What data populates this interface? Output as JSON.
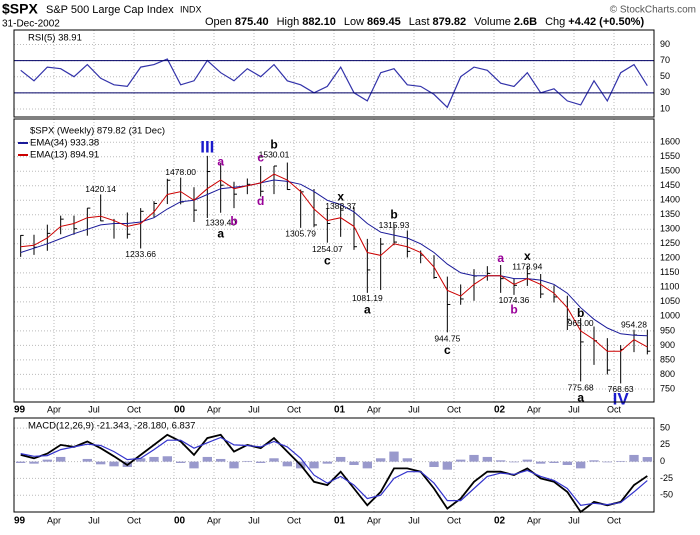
{
  "header": {
    "symbol": "$SPX",
    "name": "S&P 500 Large Cap Index",
    "exchange": "INDX",
    "date": "31-Dec-2002",
    "copyright": "© StockCharts.com",
    "quote": [
      {
        "label": "Open",
        "value": "875.40"
      },
      {
        "label": "High",
        "value": "882.10"
      },
      {
        "label": "Low",
        "value": "869.45"
      },
      {
        "label": "Last",
        "value": "879.82"
      },
      {
        "label": "Volume",
        "value": "2.6B"
      },
      {
        "label": "Chg",
        "value": "+4.42 (+0.50%)"
      }
    ]
  },
  "chart_data": [
    {
      "type": "line",
      "title": "RSI(5) 38.91",
      "ylim": [
        0,
        108
      ],
      "yticks": [
        90,
        70,
        50,
        30,
        10
      ],
      "color": "#3333aa",
      "values": [
        58,
        45,
        62,
        60,
        50,
        65,
        48,
        40,
        38,
        62,
        65,
        72,
        40,
        45,
        70,
        55,
        45,
        60,
        50,
        65,
        45,
        40,
        30,
        38,
        62,
        30,
        20,
        55,
        60,
        40,
        38,
        28,
        12,
        50,
        62,
        58,
        42,
        38,
        55,
        30,
        35,
        20,
        15,
        45,
        20,
        55,
        65,
        38.91
      ]
    },
    {
      "type": "ohlc",
      "title": "$SPX (Weekly) 879.82 (31 Dec)",
      "ylim": [
        705,
        1680
      ],
      "yticks": [
        1600,
        1550,
        1500,
        1450,
        1400,
        1350,
        1300,
        1250,
        1200,
        1150,
        1100,
        1050,
        1000,
        950,
        900,
        850,
        800,
        750
      ],
      "x": [
        "1999-01",
        "1999-02",
        "1999-03",
        "1999-04",
        "1999-05",
        "1999-06",
        "1999-07",
        "1999-08",
        "1999-09",
        "1999-10",
        "1999-11",
        "1999-12",
        "2000-01",
        "2000-02",
        "2000-03",
        "2000-04",
        "2000-05",
        "2000-06",
        "2000-07",
        "2000-08",
        "2000-09",
        "2000-10",
        "2000-11",
        "2000-12",
        "2001-01",
        "2001-02",
        "2001-03",
        "2001-04",
        "2001-05",
        "2001-06",
        "2001-07",
        "2001-08",
        "2001-09",
        "2001-10",
        "2001-11",
        "2001-12",
        "2002-01",
        "2002-02",
        "2002-03",
        "2002-04",
        "2002-05",
        "2002-06",
        "2002-07",
        "2002-08",
        "2002-09",
        "2002-10",
        "2002-11",
        "2002-12"
      ],
      "xticks": [
        {
          "value": "1999-01",
          "label": "99"
        },
        {
          "value": "1999-04",
          "label": "Apr"
        },
        {
          "value": "1999-07",
          "label": "Jul"
        },
        {
          "value": "1999-10",
          "label": "Oct"
        },
        {
          "value": "2000-01",
          "label": "00"
        },
        {
          "value": "2000-04",
          "label": "Apr"
        },
        {
          "value": "2000-07",
          "label": "Jul"
        },
        {
          "value": "2000-10",
          "label": "Oct"
        },
        {
          "value": "2001-01",
          "label": "01"
        },
        {
          "value": "2001-04",
          "label": "Apr"
        },
        {
          "value": "2001-07",
          "label": "Jul"
        },
        {
          "value": "2001-10",
          "label": "Oct"
        },
        {
          "value": "2002-01",
          "label": "02"
        },
        {
          "value": "2002-04",
          "label": "Apr"
        },
        {
          "value": "2002-07",
          "label": "Jul"
        },
        {
          "value": "2002-10",
          "label": "Oct"
        }
      ],
      "color": "#000000",
      "high": [
        1280,
        1281,
        1316,
        1347,
        1347,
        1373,
        1420,
        1336,
        1358,
        1373,
        1397,
        1474,
        1478,
        1445,
        1553,
        1528,
        1464,
        1475,
        1518,
        1518,
        1530,
        1437,
        1439,
        1373,
        1383,
        1376,
        1267,
        1270,
        1316,
        1296,
        1227,
        1211,
        1137,
        1110,
        1163,
        1173,
        1177,
        1131,
        1174,
        1146,
        1107,
        1071,
        994,
        965,
        925,
        901,
        954,
        954
      ],
      "low": [
        1205,
        1212,
        1226,
        1283,
        1281,
        1278,
        1328,
        1268,
        1268,
        1234,
        1341,
        1387,
        1386,
        1325,
        1339,
        1357,
        1373,
        1421,
        1413,
        1421,
        1436,
        1305,
        1307,
        1254,
        1274,
        1229,
        1081,
        1091,
        1245,
        1203,
        1183,
        1129,
        945,
        1040,
        1054,
        1123,
        1081,
        1074,
        1105,
        1063,
        1048,
        953,
        776,
        833,
        800,
        769,
        877,
        869
      ],
      "close": [
        1279,
        1238,
        1286,
        1335,
        1302,
        1373,
        1329,
        1320,
        1283,
        1362,
        1389,
        1469,
        1394,
        1366,
        1499,
        1452,
        1421,
        1455,
        1431,
        1518,
        1437,
        1429,
        1315,
        1320,
        1366,
        1240,
        1160,
        1249,
        1256,
        1224,
        1211,
        1134,
        1041,
        1060,
        1139,
        1148,
        1130,
        1107,
        1147,
        1077,
        1067,
        990,
        912,
        916,
        815,
        886,
        936,
        880
      ],
      "series": [
        {
          "name": "EMA(34) 933.38",
          "color": "#1a1a99",
          "values": [
            1220,
            1235,
            1250,
            1268,
            1285,
            1300,
            1315,
            1320,
            1320,
            1325,
            1340,
            1370,
            1395,
            1400,
            1420,
            1440,
            1445,
            1450,
            1460,
            1470,
            1465,
            1455,
            1430,
            1400,
            1385,
            1360,
            1320,
            1290,
            1280,
            1270,
            1250,
            1220,
            1180,
            1150,
            1140,
            1140,
            1140,
            1130,
            1130,
            1125,
            1110,
            1080,
            1030,
            990,
            960,
            940,
            935,
            933.38
          ]
        },
        {
          "name": "EMA(13) 894.91",
          "color": "#cc0000",
          "values": [
            1240,
            1245,
            1270,
            1310,
            1320,
            1340,
            1345,
            1330,
            1310,
            1320,
            1360,
            1420,
            1430,
            1400,
            1440,
            1470,
            1440,
            1450,
            1460,
            1490,
            1470,
            1430,
            1370,
            1330,
            1340,
            1310,
            1220,
            1210,
            1250,
            1240,
            1220,
            1170,
            1090,
            1070,
            1110,
            1140,
            1140,
            1110,
            1130,
            1110,
            1080,
            1030,
            950,
            920,
            880,
            880,
            920,
            894.91
          ]
        }
      ],
      "annotations": [
        {
          "text": "III",
          "x": "2000-03",
          "y": 1580,
          "color": "#1a1acc"
        },
        {
          "text": "a",
          "x": "2000-04",
          "y": 1530,
          "color": "#990099"
        },
        {
          "text": "c",
          "x": "2000-07",
          "y": 1545,
          "color": "#990099"
        },
        {
          "text": "b",
          "x": "2000-08",
          "y": 1590,
          "color": "#000000"
        },
        {
          "text": "1530.01",
          "x": "2000-08",
          "y": 1555,
          "color": "#000000"
        },
        {
          "text": "1478.00",
          "x": "2000-01",
          "y": 1495,
          "color": "#000000"
        },
        {
          "text": "1420.14",
          "x": "1999-07",
          "y": 1437,
          "color": "#000000"
        },
        {
          "text": "1339.40",
          "x": "2000-04",
          "y": 1320,
          "color": "#000000"
        },
        {
          "text": "a",
          "x": "2000-04",
          "y": 1282,
          "color": "#000000"
        },
        {
          "text": "b",
          "x": "2000-05",
          "y": 1325,
          "color": "#990099"
        },
        {
          "text": "d",
          "x": "2000-07",
          "y": 1395,
          "color": "#990099"
        },
        {
          "text": "1233.66",
          "x": "1999-10",
          "y": 1212,
          "color": "#000000"
        },
        {
          "text": "x",
          "x": "2001-01",
          "y": 1410,
          "color": "#000000"
        },
        {
          "text": "1383.37",
          "x": "2001-01",
          "y": 1378,
          "color": "#000000"
        },
        {
          "text": "1305.79",
          "x": "2000-10",
          "y": 1283,
          "color": "#000000"
        },
        {
          "text": "1254.07",
          "x": "2000-12",
          "y": 1230,
          "color": "#000000"
        },
        {
          "text": "c",
          "x": "2000-12",
          "y": 1190,
          "color": "#000000"
        },
        {
          "text": "b",
          "x": "2001-05",
          "y": 1348,
          "color": "#000000"
        },
        {
          "text": "1315.93",
          "x": "2001-05",
          "y": 1312,
          "color": "#000000"
        },
        {
          "text": "1081.19",
          "x": "2001-03",
          "y": 1060,
          "color": "#000000"
        },
        {
          "text": "a",
          "x": "2001-03",
          "y": 1020,
          "color": "#000000"
        },
        {
          "text": "944.75",
          "x": "2001-09",
          "y": 922,
          "color": "#000000"
        },
        {
          "text": "c",
          "x": "2001-09",
          "y": 882,
          "color": "#000000"
        },
        {
          "text": "a",
          "x": "2002-01",
          "y": 1198,
          "color": "#990099"
        },
        {
          "text": "x",
          "x": "2002-03",
          "y": 1205,
          "color": "#000000"
        },
        {
          "text": "1173.94",
          "x": "2002-03",
          "y": 1170,
          "color": "#000000"
        },
        {
          "text": "1074.36",
          "x": "2002-02",
          "y": 1053,
          "color": "#000000"
        },
        {
          "text": "b",
          "x": "2002-02",
          "y": 1020,
          "color": "#990099"
        },
        {
          "text": "b",
          "x": "2002-07",
          "y": 1008,
          "color": "#000000"
        },
        {
          "text": "965.00",
          "x": "2002-07",
          "y": 974,
          "color": "#000000"
        },
        {
          "text": "954.28",
          "x": "2002-11",
          "y": 970,
          "color": "#000000"
        },
        {
          "text": "775.68",
          "x": "2002-07",
          "y": 752,
          "color": "#000000"
        },
        {
          "text": "768.63",
          "x": "2002-10",
          "y": 747,
          "color": "#000000"
        },
        {
          "text": "a",
          "x": "2002-07",
          "y": 718,
          "color": "#000000"
        },
        {
          "text": "IV",
          "x": "2002-10",
          "y": 712,
          "color": "#1a1acc"
        }
      ]
    },
    {
      "type": "line",
      "title": "MACD(12,26,9) -21.343, -28.180, 6.837",
      "ylim": [
        -75,
        65
      ],
      "yticks": [
        50,
        25,
        0,
        -25,
        -50
      ],
      "xticks": [
        {
          "value": "1999-01",
          "label": "99"
        },
        {
          "value": "1999-04",
          "label": "Apr"
        },
        {
          "value": "1999-07",
          "label": "Jul"
        },
        {
          "value": "1999-10",
          "label": "Oct"
        },
        {
          "value": "2000-01",
          "label": "00"
        },
        {
          "value": "2000-04",
          "label": "Apr"
        },
        {
          "value": "2000-07",
          "label": "Jul"
        },
        {
          "value": "2000-10",
          "label": "Oct"
        },
        {
          "value": "2001-01",
          "label": "01"
        },
        {
          "value": "2001-04",
          "label": "Apr"
        },
        {
          "value": "2001-07",
          "label": "Jul"
        },
        {
          "value": "2001-10",
          "label": "Oct"
        },
        {
          "value": "2002-01",
          "label": "02"
        },
        {
          "value": "2002-04",
          "label": "Apr"
        },
        {
          "value": "2002-07",
          "label": "Jul"
        },
        {
          "value": "2002-10",
          "label": "Oct"
        }
      ],
      "series": [
        {
          "color": "#000000",
          "values": [
            10,
            5,
            12,
            25,
            22,
            30,
            20,
            8,
            -5,
            10,
            25,
            40,
            30,
            10,
            35,
            40,
            15,
            25,
            20,
            35,
            15,
            -5,
            -30,
            -35,
            -15,
            -40,
            -65,
            -45,
            -10,
            -10,
            -15,
            -40,
            -70,
            -55,
            -30,
            -15,
            -15,
            -20,
            -10,
            -25,
            -30,
            -45,
            -75,
            -60,
            -65,
            -60,
            -35,
            -21.343
          ]
        },
        {
          "color": "#3333cc",
          "values": [
            12,
            8,
            9,
            18,
            22,
            26,
            24,
            15,
            3,
            5,
            18,
            32,
            32,
            20,
            28,
            36,
            25,
            24,
            22,
            30,
            22,
            5,
            -20,
            -32,
            -22,
            -35,
            -55,
            -50,
            -25,
            -15,
            -15,
            -32,
            -58,
            -58,
            -40,
            -22,
            -17,
            -19,
            -13,
            -22,
            -28,
            -40,
            -65,
            -62,
            -64,
            -61,
            -45,
            -28.18
          ]
        }
      ],
      "histogram": {
        "color": "#9999cc",
        "values": [
          -2,
          -3,
          3,
          7,
          0,
          4,
          -4,
          -7,
          -8,
          5,
          7,
          8,
          -2,
          -10,
          7,
          4,
          -10,
          1,
          -2,
          5,
          -7,
          -10,
          -10,
          -3,
          7,
          -5,
          -10,
          5,
          15,
          5,
          0,
          -8,
          -12,
          3,
          10,
          7,
          2,
          -1,
          3,
          -3,
          -2,
          -5,
          -10,
          2,
          -1,
          1,
          10,
          6.837
        ]
      }
    }
  ]
}
